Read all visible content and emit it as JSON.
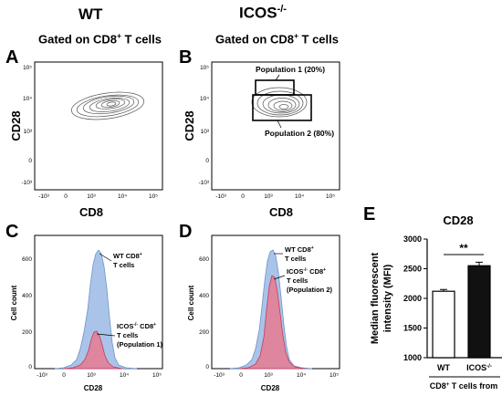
{
  "header": {
    "wt_title": "WT",
    "icos_title_base": "ICOS",
    "icos_title_sup": "-/-",
    "gated_text": "Gated on CD8",
    "gated_sup": "+",
    "gated_suffix": " T cells"
  },
  "panel_labels": {
    "a": "A",
    "b": "B",
    "c": "C",
    "d": "D",
    "e": "E"
  },
  "flow_axes": {
    "x_label": "CD8",
    "y_label": "CD28",
    "x_ticks": [
      "-10³",
      "0",
      "10³",
      "10⁴",
      "10⁵"
    ],
    "y_ticks": [
      "10⁵",
      "10⁴",
      "10³",
      "0",
      "-10³"
    ]
  },
  "panel_b_gates": {
    "pop1": "Population 1 (20%)",
    "pop2": "Population 2 (80%)"
  },
  "histograms": {
    "x_label": "CD28",
    "y_label": "Cell count",
    "y_ticks": [
      "600",
      "400",
      "200",
      "0"
    ],
    "x_ticks": [
      "-10³",
      "0",
      "10³",
      "10⁴",
      "10⁵"
    ],
    "wt_label_line1": "WT CD8",
    "wt_label_sup": "+",
    "wt_label_line2": "T cells",
    "c_ko_line1": "ICOS",
    "c_ko_sup1": "-/-",
    "c_ko_mid": " CD8",
    "c_ko_sup2": "+",
    "c_ko_line2": "T cells",
    "c_ko_line3": "(Population 1)",
    "d_ko_line3": "(Population 2)",
    "colors": {
      "wt_fill": "#a9c4e8",
      "wt_line": "#6f93c9",
      "ko_fill": "#e28096",
      "ko_line": "#c43c5a"
    }
  },
  "chart_data": {
    "type": "bar",
    "title": "CD28",
    "categories": [
      "WT",
      "ICOS-/-"
    ],
    "values": [
      2120,
      2550
    ],
    "errors": [
      30,
      60
    ],
    "ylabel": "Median fluorescent intensity (MFI)",
    "xlabel": "CD8+ T cells from",
    "ylim": [
      1000,
      3000
    ],
    "yticks": [
      1000,
      1500,
      2000,
      2500,
      3000
    ],
    "significance": "**",
    "bar_colors": [
      "#ffffff",
      "#111111"
    ]
  },
  "bar_text": {
    "cat_wt": "WT",
    "cat_ko": "ICOS",
    "cat_ko_sup": "-/-",
    "ylabel_line1": "Median fluorescent",
    "ylabel_line2": "intensity (MFI)",
    "xlabel_pre": "CD8",
    "xlabel_sup": "+",
    "xlabel_post": " T cells from"
  }
}
